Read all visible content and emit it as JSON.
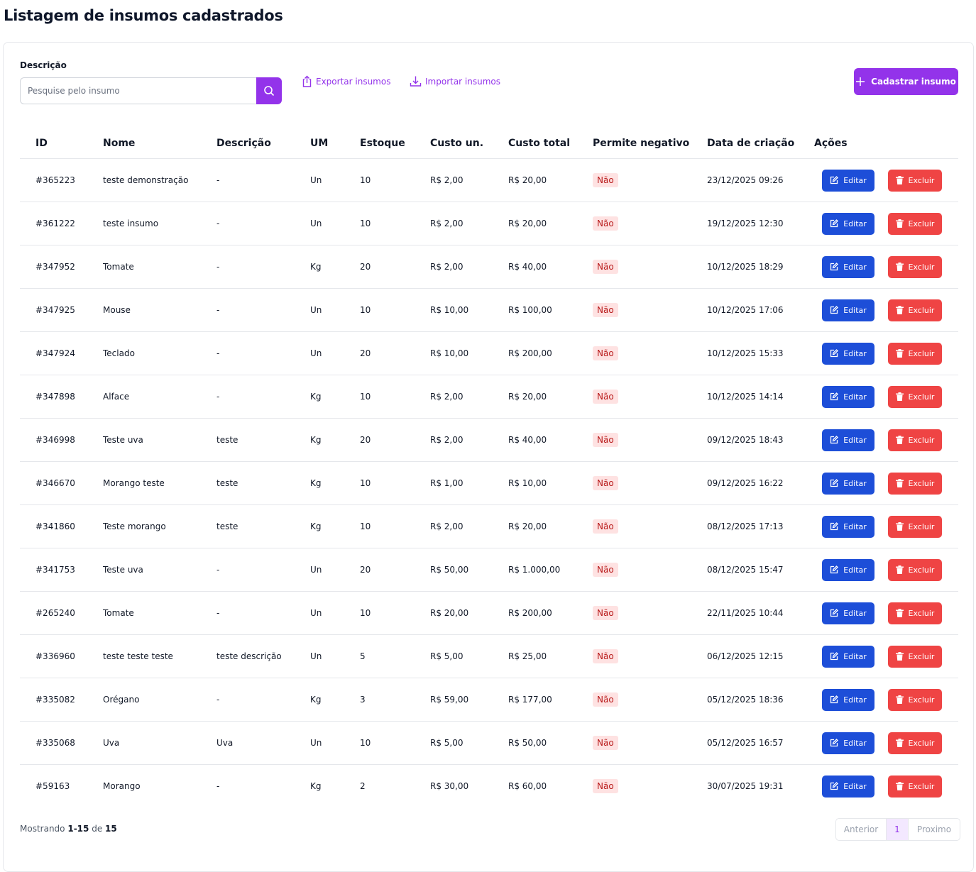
{
  "header": {
    "title": "Listagem de insumos cadastrados"
  },
  "search": {
    "label": "Descrição",
    "placeholder": "Pesquise pelo insumo"
  },
  "actions": {
    "export": "Exportar insumos",
    "import": "Importar insumos",
    "create": "Cadastrar insumo"
  },
  "table": {
    "columns": [
      "ID",
      "Nome",
      "Descrição",
      "UM",
      "Estoque",
      "Custo un.",
      "Custo total",
      "Permite negativo",
      "Data de criação",
      "Ações"
    ],
    "rows": [
      [
        "#365223",
        "teste demonstração",
        "-",
        "Un",
        "10",
        "R$ 2,00",
        "R$ 20,00",
        "Não",
        "23/12/2025 09:26"
      ],
      [
        "#361222",
        "teste insumo",
        "-",
        "Un",
        "10",
        "R$ 2,00",
        "R$ 20,00",
        "Não",
        "19/12/2025 12:30"
      ],
      [
        "#347952",
        "Tomate",
        "-",
        "Kg",
        "20",
        "R$ 2,00",
        "R$ 40,00",
        "Não",
        "10/12/2025 18:29"
      ],
      [
        "#347925",
        "Mouse",
        "-",
        "Un",
        "10",
        "R$ 10,00",
        "R$ 100,00",
        "Não",
        "10/12/2025 17:06"
      ],
      [
        "#347924",
        "Teclado",
        "-",
        "Un",
        "20",
        "R$ 10,00",
        "R$ 200,00",
        "Não",
        "10/12/2025 15:33"
      ],
      [
        "#347898",
        "Alface",
        "-",
        "Kg",
        "10",
        "R$ 2,00",
        "R$ 20,00",
        "Não",
        "10/12/2025 14:14"
      ],
      [
        "#346998",
        "Teste uva",
        "teste",
        "Kg",
        "20",
        "R$ 2,00",
        "R$ 40,00",
        "Não",
        "09/12/2025 18:43"
      ],
      [
        "#346670",
        "Morango teste",
        "teste",
        "Kg",
        "10",
        "R$ 1,00",
        "R$ 10,00",
        "Não",
        "09/12/2025 16:22"
      ],
      [
        "#341860",
        "Teste morango",
        "teste",
        "Kg",
        "10",
        "R$ 2,00",
        "R$ 20,00",
        "Não",
        "08/12/2025 17:13"
      ],
      [
        "#341753",
        "Teste uva",
        "-",
        "Un",
        "20",
        "R$ 50,00",
        "R$ 1.000,00",
        "Não",
        "08/12/2025 15:47"
      ],
      [
        "#265240",
        "Tomate",
        "-",
        "Un",
        "10",
        "R$ 20,00",
        "R$ 200,00",
        "Não",
        "22/11/2025 10:44"
      ],
      [
        "#336960",
        "teste teste teste",
        "teste descrição",
        "Un",
        "5",
        "R$ 5,00",
        "R$ 25,00",
        "Não",
        "06/12/2025 12:15"
      ],
      [
        "#335082",
        "Orégano",
        "-",
        "Kg",
        "3",
        "R$ 59,00",
        "R$ 177,00",
        "Não",
        "05/12/2025 18:36"
      ],
      [
        "#335068",
        "Uva",
        "Uva",
        "Un",
        "10",
        "R$ 5,00",
        "R$ 50,00",
        "Não",
        "05/12/2025 16:57"
      ],
      [
        "#59163",
        "Morango",
        "-",
        "Kg",
        "2",
        "R$ 30,00",
        "R$ 60,00",
        "Não",
        "30/07/2025 19:31"
      ]
    ],
    "edit": "Editar",
    "delete": "Excluir"
  },
  "pagination": {
    "showing": "Mostrando",
    "range": "1-15",
    "of": "de",
    "total": "15",
    "prev": "Anterior",
    "page": "1",
    "next": "Proximo"
  }
}
